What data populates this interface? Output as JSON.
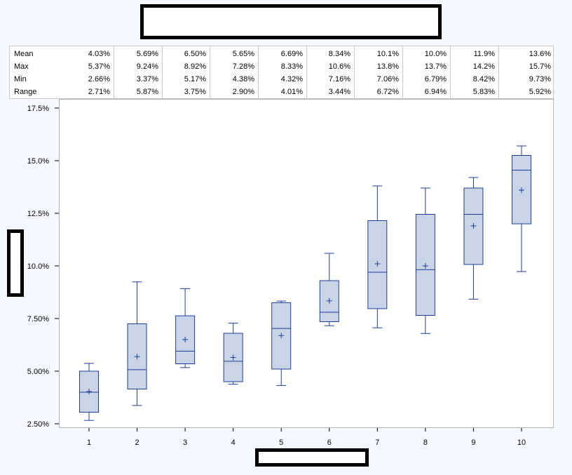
{
  "chart_data": {
    "type": "box",
    "title": "",
    "xlabel": "",
    "ylabel": "",
    "categories": [
      "1",
      "2",
      "3",
      "4",
      "5",
      "6",
      "7",
      "8",
      "9",
      "10"
    ],
    "y_ticks": [
      "2.50%",
      "5.00%",
      "7.50%",
      "10.0%",
      "12.5%",
      "15.0%",
      "17.5%"
    ],
    "y_tick_values": [
      2.5,
      5.0,
      7.5,
      10.0,
      12.5,
      15.0,
      17.5
    ],
    "ylim": [
      2.3,
      17.7
    ],
    "boxes": [
      {
        "category": "1",
        "min": 2.66,
        "q1": 3.05,
        "median": 4.0,
        "q3": 5.0,
        "max": 5.37,
        "mean": 4.03
      },
      {
        "category": "2",
        "min": 3.37,
        "q1": 4.15,
        "median": 5.07,
        "q3": 7.25,
        "max": 9.24,
        "mean": 5.69
      },
      {
        "category": "3",
        "min": 5.17,
        "q1": 5.35,
        "median": 5.95,
        "q3": 7.63,
        "max": 8.92,
        "mean": 6.5
      },
      {
        "category": "4",
        "min": 4.38,
        "q1": 4.5,
        "median": 5.47,
        "q3": 6.8,
        "max": 7.28,
        "mean": 5.65
      },
      {
        "category": "5",
        "min": 4.32,
        "q1": 5.1,
        "median": 7.03,
        "q3": 8.25,
        "max": 8.33,
        "mean": 6.69
      },
      {
        "category": "6",
        "min": 7.16,
        "q1": 7.35,
        "median": 7.8,
        "q3": 9.3,
        "max": 10.6,
        "mean": 8.34
      },
      {
        "category": "7",
        "min": 7.06,
        "q1": 7.97,
        "median": 9.7,
        "q3": 12.15,
        "max": 13.8,
        "mean": 10.1
      },
      {
        "category": "8",
        "min": 6.79,
        "q1": 7.65,
        "median": 9.82,
        "q3": 12.45,
        "max": 13.7,
        "mean": 10.0
      },
      {
        "category": "9",
        "min": 8.42,
        "q1": 10.07,
        "median": 12.45,
        "q3": 13.7,
        "max": 14.2,
        "mean": 11.9
      },
      {
        "category": "10",
        "min": 9.73,
        "q1": 12.0,
        "median": 14.55,
        "q3": 15.25,
        "max": 15.7,
        "mean": 13.6
      }
    ],
    "stats_table": {
      "rows": [
        {
          "label": "Mean",
          "values": [
            "4.03%",
            "5.69%",
            "6.50%",
            "5.65%",
            "6.69%",
            "8.34%",
            "10.1%",
            "10.0%",
            "11.9%",
            "13.6%"
          ]
        },
        {
          "label": "Max",
          "values": [
            "5.37%",
            "9.24%",
            "8.92%",
            "7.28%",
            "8.33%",
            "10.6%",
            "13.8%",
            "13.7%",
            "14.2%",
            "15.7%"
          ]
        },
        {
          "label": "Min",
          "values": [
            "2.66%",
            "3.37%",
            "5.17%",
            "4.38%",
            "4.32%",
            "7.16%",
            "7.06%",
            "6.79%",
            "8.42%",
            "9.73%"
          ]
        },
        {
          "label": "Range",
          "values": [
            "2.71%",
            "5.87%",
            "3.75%",
            "2.90%",
            "4.01%",
            "3.44%",
            "6.72%",
            "6.94%",
            "5.83%",
            "5.92%"
          ]
        }
      ]
    },
    "colors": {
      "box_fill": "#C9D5E6",
      "box_stroke": "#1F3F96"
    },
    "grid": false,
    "legend": "none"
  }
}
